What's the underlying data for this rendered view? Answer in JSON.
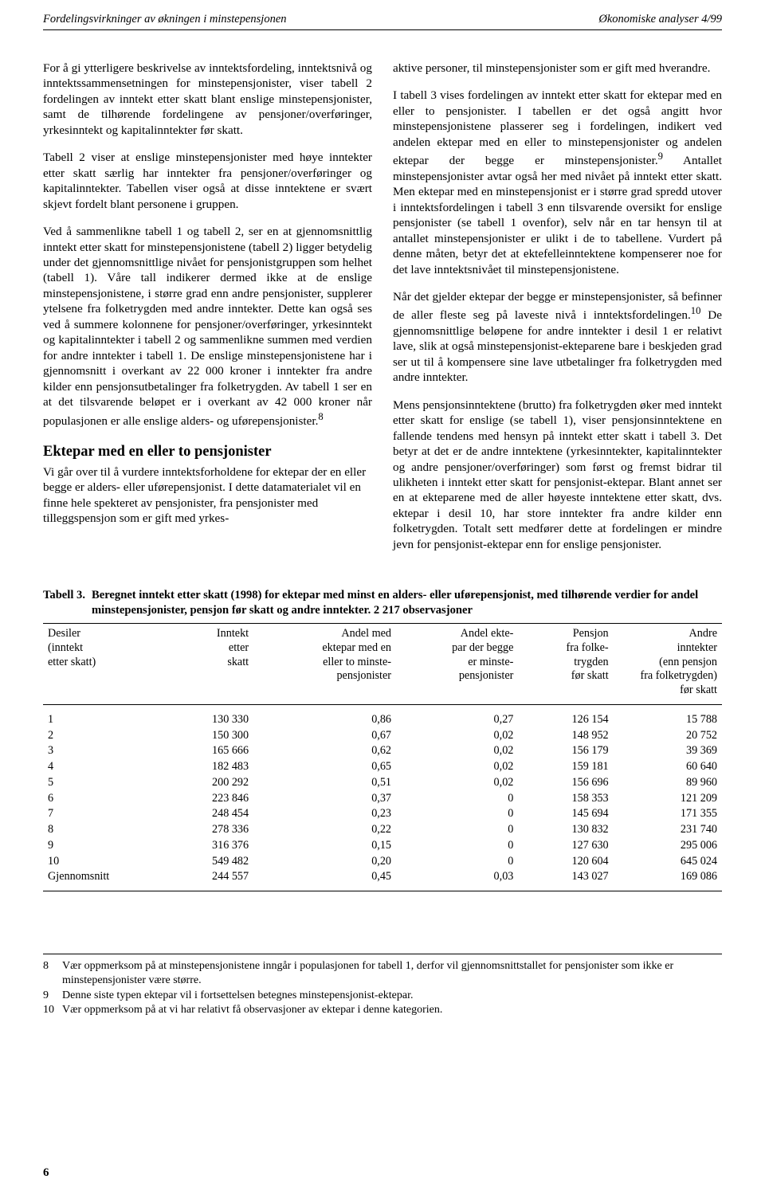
{
  "header": {
    "left": "Fordelingsvirkninger av økningen i minstepensjonen",
    "right": "Økonomiske analyser 4/99"
  },
  "left_column": {
    "p1": "For å gi ytterligere beskrivelse av inntektsfordeling, inntektsnivå og inntektssammensetningen for minstepensjonister, viser tabell 2 fordelingen av inntekt etter skatt blant enslige minstepensjonister, samt de tilhørende fordelingene av pensjoner/overføringer, yrkesinntekt og kapitalinntekter før skatt.",
    "p2": "Tabell 2 viser at enslige minstepensjonister med høye inntekter etter skatt særlig har inntekter fra pensjoner/overføringer og kapitalinntekter. Tabellen viser også at disse inntektene er svært skjevt fordelt blant personene i gruppen.",
    "p3": "Ved å sammenlikne tabell 1 og tabell 2, ser en at gjennomsnittlig inntekt etter skatt for minstepensjonistene (tabell 2) ligger betydelig under det gjennomsnittlige nivået for pensjonistgruppen som helhet (tabell 1). Våre tall indikerer dermed ikke at de enslige minstepensjonistene, i større grad enn andre pensjonister, supplerer ytelsene fra folketrygden med andre inntekter. Dette kan også ses ved å summere kolonnene for pensjoner/overføringer, yrkesinntekt og kapitalinntekter i tabell 2 og sammenlikne summen med verdien for andre inntekter i tabell 1. De enslige minstepensjonistene har i gjennomsnitt i overkant av 22 000 kroner i inntekter fra andre kilder enn pensjonsutbetalinger fra folketrygden. Av tabell 1 ser en at det tilsvarende beløpet er i overkant av 42 000 kroner når populasjonen er alle enslige alders- og uførepensjonister.",
    "p3_sup": "8",
    "h2": "Ektepar med en eller to pensjonister",
    "p4": "Vi går over til å vurdere inntektsforholdene for ektepar der en eller begge er alders- eller uførepensjonist. I dette datamaterialet vil en finne hele spekteret av pensjonister, fra pensjonister med tilleggspensjon som er gift med yrkes-"
  },
  "right_column": {
    "p1": "aktive personer, til minstepensjonister som er gift med hverandre.",
    "p2a": "I tabell 3 vises fordelingen av inntekt etter skatt for ektepar med en eller to pensjonister. I tabellen er det også angitt hvor minstepensjonistene plasserer seg i fordelingen, indikert ved andelen ektepar med en eller to minstepensjonister og andelen ektepar der begge er minstepensjonister.",
    "p2_sup": "9",
    "p2b": " Antallet minstepensjonister avtar også her med nivået på inntekt etter skatt. Men ektepar med en minstepensjonist er i større grad spredd utover i inntektsfordelingen i tabell 3 enn tilsvarende oversikt for enslige pensjonister (se tabell 1 ovenfor), selv når en tar hensyn til at antallet minstepensjonister er ulikt i de to tabellene. Vurdert på denne måten, betyr det at ektefelleinntektene kompenserer noe for det lave inntektsnivået til minstepensjonistene.",
    "p3a": "Når det gjelder ektepar der begge er minstepensjonister, så befinner de aller fleste seg på laveste nivå i inntektsfordelingen.",
    "p3_sup": "10",
    "p3b": " De gjennomsnittlige beløpene for andre inntekter i desil 1 er relativt lave, slik at også minstepensjonist-ekteparene bare i beskjeden grad ser ut til å kompensere sine lave utbetalinger fra folketrygden med andre inntekter.",
    "p4": "Mens pensjonsinntektene (brutto) fra folketrygden øker med inntekt etter skatt for enslige (se tabell 1), viser pensjonsinntektene en fallende tendens med hensyn på inntekt etter skatt i tabell 3. Det betyr at det er de andre inntektene (yrkesinntekter, kapitalinntekter og andre pensjoner/overføringer) som først og fremst bidrar til ulikheten i inntekt etter skatt for pensjonist-ektepar. Blant annet ser en at ekteparene med de aller høyeste inntektene etter skatt, dvs. ektepar i desil 10, har store inntekter fra andre kilder enn folketrygden. Totalt sett medfører dette at fordelingen er mindre jevn for pensjonist-ektepar enn for enslige pensjonister."
  },
  "table3": {
    "caption_lead": "Tabell 3.",
    "caption_body": "Beregnet inntekt etter skatt (1998) for ektepar med minst en alders- eller uførepensjonist, med tilhørende verdier for andel minstepensjonister, pensjon før skatt og andre inntekter. 2 217 observasjoner",
    "columns": [
      "Desiler\n(inntekt\netter skatt)",
      "Inntekt\netter\nskatt",
      "Andel med\nektepar med en\neller to minste-\npensjonister",
      "Andel ekte-\npar der begge\ner minste-\npensjonister",
      "Pensjon\nfra folke-\ntrygden\nfør skatt",
      "Andre\ninntekter\n(enn pensjon\nfra folketrygden)\nfør skatt"
    ],
    "rows": [
      [
        "1",
        "130 330",
        "0,86",
        "0,27",
        "126 154",
        "15 788"
      ],
      [
        "2",
        "150 300",
        "0,67",
        "0,02",
        "148 952",
        "20 752"
      ],
      [
        "3",
        "165 666",
        "0,62",
        "0,02",
        "156 179",
        "39 369"
      ],
      [
        "4",
        "182 483",
        "0,65",
        "0,02",
        "159 181",
        "60 640"
      ],
      [
        "5",
        "200 292",
        "0,51",
        "0,02",
        "156 696",
        "89 960"
      ],
      [
        "6",
        "223 846",
        "0,37",
        "0",
        "158 353",
        "121 209"
      ],
      [
        "7",
        "248 454",
        "0,23",
        "0",
        "145 694",
        "171 355"
      ],
      [
        "8",
        "278 336",
        "0,22",
        "0",
        "130 832",
        "231 740"
      ],
      [
        "9",
        "316 376",
        "0,15",
        "0",
        "127 630",
        "295 006"
      ],
      [
        "10",
        "549 482",
        "0,20",
        "0",
        "120 604",
        "645 024"
      ],
      [
        "Gjennomsnitt",
        "244 557",
        "0,45",
        "0,03",
        "143 027",
        "169 086"
      ]
    ],
    "col_widths": [
      "16%",
      "15%",
      "21%",
      "18%",
      "14%",
      "16%"
    ]
  },
  "footnotes": [
    {
      "num": "8",
      "text": "Vær oppmerksom på at minstepensjonistene inngår i populasjonen for tabell 1, derfor vil gjennomsnittstallet for pensjonister som ikke er minstepensjonister være større."
    },
    {
      "num": "9",
      "text": "Denne siste typen ektepar vil i fortsettelsen betegnes minstepensjonist-ektepar."
    },
    {
      "num": "10",
      "text": "Vær oppmerksom på at vi har relativt få observasjoner av ektepar i denne kategorien."
    }
  ],
  "page_number": "6"
}
